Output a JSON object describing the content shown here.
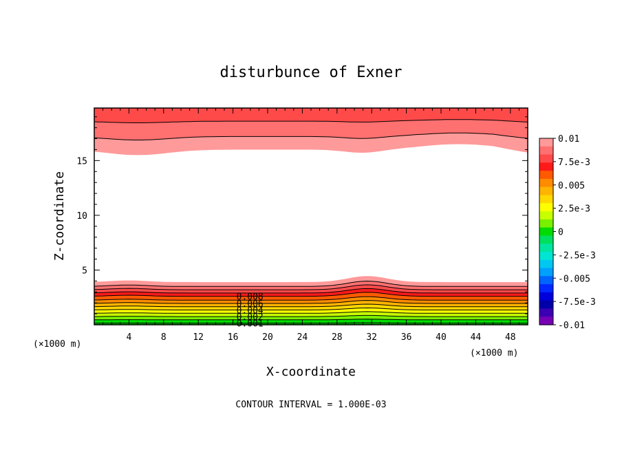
{
  "chart_data": {
    "type": "contour",
    "title": "disturbunce of Exner",
    "xlabel": "X-coordinate",
    "ylabel": "Z-coordinate",
    "x_unit": "(×1000 m)",
    "y_unit": "(×1000 m)",
    "xlim": [
      0,
      50
    ],
    "ylim": [
      0,
      19.8
    ],
    "x_ticks": [
      4,
      8,
      12,
      16,
      20,
      24,
      28,
      32,
      36,
      40,
      44,
      48
    ],
    "y_ticks": [
      5,
      10,
      15
    ],
    "contour_interval_text": "CONTOUR INTERVAL = 1.000E-03",
    "contour_labels": [
      "0.008",
      "0.006",
      "0.004",
      "0.002",
      "0.001"
    ],
    "colorbar": {
      "min": -0.01,
      "max": 0.01,
      "labels": [
        "0.01",
        "7.5e-3",
        "0.005",
        "2.5e-3",
        "0",
        "-2.5e-3",
        "-0.005",
        "-7.5e-3",
        "-0.01"
      ],
      "colors": [
        "#ff9a9a",
        "#ff7070",
        "#ff4a4a",
        "#ff1a1a",
        "#ff5a00",
        "#ff8c00",
        "#ffb400",
        "#ffd800",
        "#ffff00",
        "#c8ff00",
        "#78f000",
        "#00dc00",
        "#00e060",
        "#00e6a0",
        "#00e6d2",
        "#00c8f0",
        "#00a0ff",
        "#0064ff",
        "#0028ff",
        "#0000dc",
        "#0000aa",
        "#3c00b4",
        "#7800b4"
      ]
    },
    "lower_bands": [
      {
        "top": 3.9,
        "color": "#ff9a9a"
      },
      {
        "top": 3.5,
        "color": "#ff7070"
      },
      {
        "top": 3.2,
        "color": "#ff4a4a"
      },
      {
        "top": 2.9,
        "color": "#ff1a1a"
      },
      {
        "top": 2.6,
        "color": "#ff5a00"
      },
      {
        "top": 2.25,
        "color": "#ff8c00"
      },
      {
        "top": 1.95,
        "color": "#ffb400"
      },
      {
        "top": 1.65,
        "color": "#ffd800"
      },
      {
        "top": 1.35,
        "color": "#ffff00"
      },
      {
        "top": 1.05,
        "color": "#c8ff00"
      },
      {
        "top": 0.75,
        "color": "#78f000"
      },
      {
        "top": 0.45,
        "color": "#00dc00"
      },
      {
        "top": 0.15,
        "color": "#00b800"
      }
    ],
    "upper_bands": [
      {
        "bottom": 16.0,
        "color": "#ff9a9a"
      },
      {
        "bottom": 17.2,
        "color": "#ff7070"
      },
      {
        "bottom": 18.6,
        "color": "#ff4a4a"
      }
    ]
  }
}
